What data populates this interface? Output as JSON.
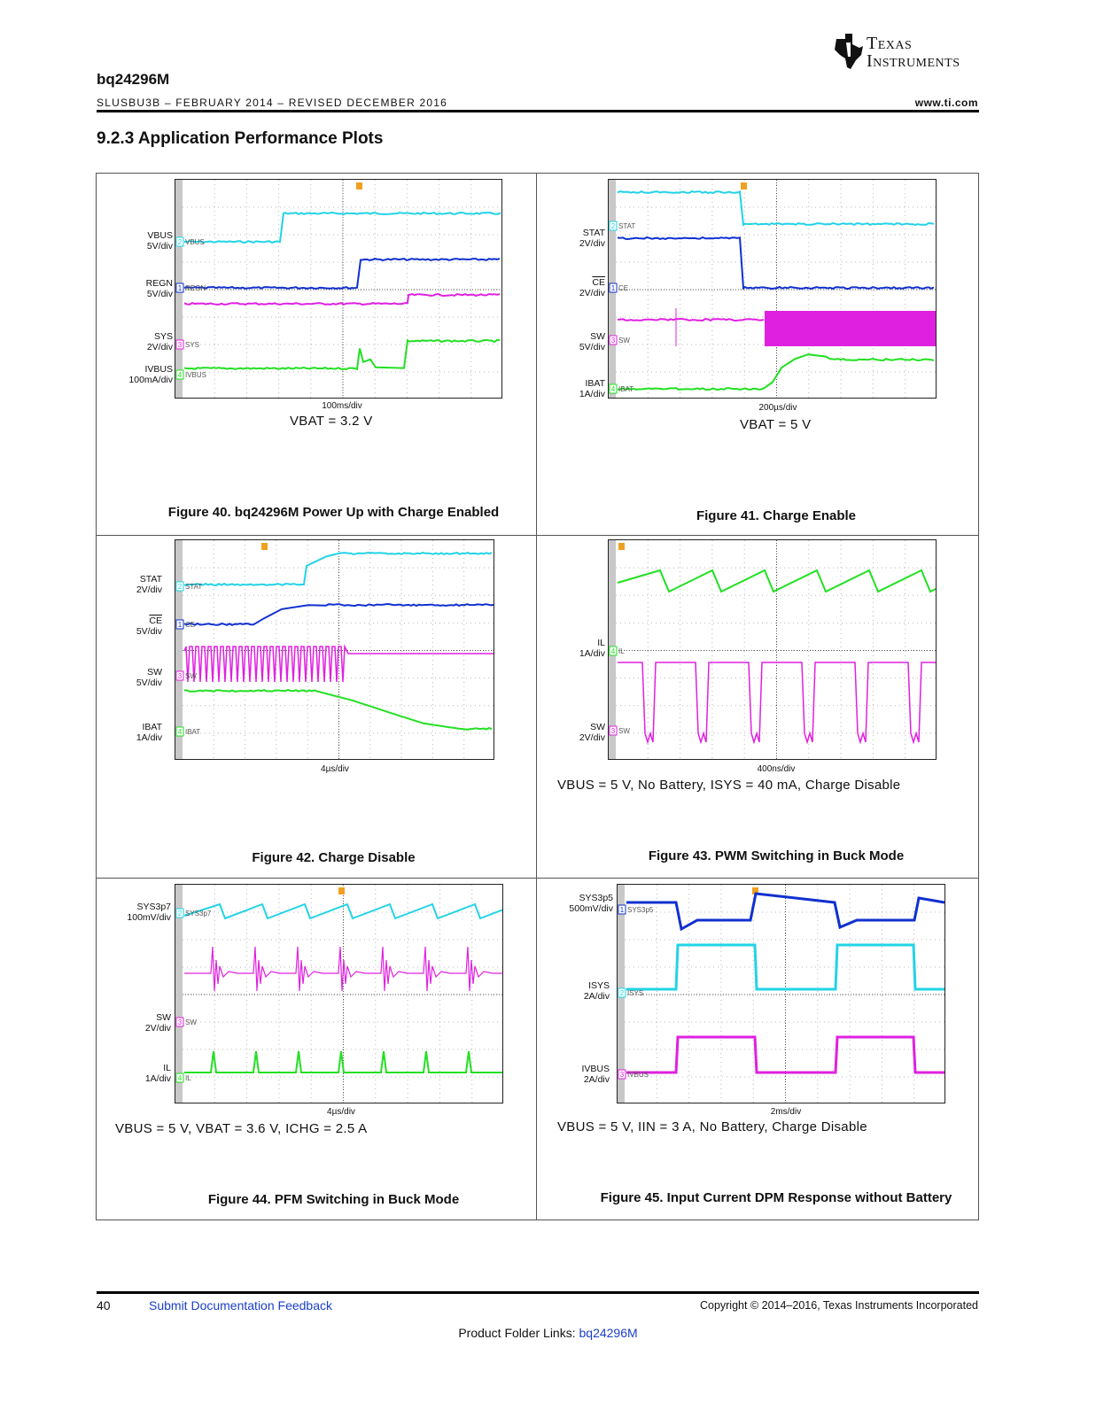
{
  "header": {
    "doc_title": "bq24296M",
    "doc_subtitle": "SLUSBU3B – FEBRUARY 2014 – REVISED DECEMBER 2016",
    "website": "www.ti.com",
    "logo_line1": "Texas",
    "logo_line2": "Instruments"
  },
  "section": {
    "title": "9.2.3   Application Performance Plots"
  },
  "figures": [
    {
      "caption": "Figure 40. bq24296M Power Up with Charge Enabled",
      "condition": "VBAT = 3.2 V",
      "time_div": "100ms/div",
      "channels": [
        {
          "name": "VBUS",
          "scale": "5V/div",
          "num": "2",
          "tag": "VBUS"
        },
        {
          "name": "REGN",
          "scale": "5V/div",
          "num": "1",
          "tag": "REGN"
        },
        {
          "name": "SYS",
          "scale": "2V/div",
          "num": "3",
          "tag": "SYS"
        },
        {
          "name": "IVBUS",
          "scale": "100mA/div",
          "num": "4",
          "tag": "IVBUS"
        }
      ]
    },
    {
      "caption": "Figure 41. Charge Enable",
      "condition": "VBAT = 5 V",
      "time_div": "200µs/div",
      "channels": [
        {
          "name": "STAT",
          "scale": "2V/div",
          "num": "2",
          "tag": "STAT"
        },
        {
          "name": "CE",
          "scale": "2V/div",
          "num": "1",
          "tag": "CE"
        },
        {
          "name": "SW",
          "scale": "5V/div",
          "num": "3",
          "tag": "SW"
        },
        {
          "name": "IBAT",
          "scale": "1A/div",
          "num": "4",
          "tag": "IBAT"
        }
      ]
    },
    {
      "caption": "Figure 42. Charge Disable",
      "condition": "",
      "time_div": "4µs/div",
      "channels": [
        {
          "name": "STAT",
          "scale": "2V/div",
          "num": "2",
          "tag": "STAT"
        },
        {
          "name": "CE",
          "scale": "5V/div",
          "num": "1",
          "tag": "CE"
        },
        {
          "name": "SW",
          "scale": "5V/div",
          "num": "3",
          "tag": "SW"
        },
        {
          "name": "IBAT",
          "scale": "1A/div",
          "num": "4",
          "tag": "IBAT"
        }
      ]
    },
    {
      "caption": "Figure 43. PWM Switching in Buck Mode",
      "condition": "VBUS = 5 V, No Battery, ISYS = 40 mA, Charge Disable",
      "time_div": "400ns/div",
      "channels": [
        {
          "name": "IL",
          "scale": "1A/div",
          "num": "4",
          "tag": "IL"
        },
        {
          "name": "SW",
          "scale": "2V/div",
          "num": "3",
          "tag": "SW"
        }
      ]
    },
    {
      "caption": "Figure 44. PFM Switching in Buck Mode",
      "condition": "VBUS = 5 V, VBAT = 3.6 V, ICHG = 2.5 A",
      "time_div": "4µs/div",
      "channels": [
        {
          "name": "SYS3p7",
          "scale": "100mV/div",
          "num": "2",
          "tag": "SYS3p7"
        },
        {
          "name": "SW",
          "scale": "2V/div",
          "num": "3",
          "tag": "SW"
        },
        {
          "name": "IL",
          "scale": "1A/div",
          "num": "4",
          "tag": "IL"
        }
      ]
    },
    {
      "caption": "Figure 45. Input Current DPM Response without Battery",
      "condition": "VBUS = 5 V, IIN = 3 A, No Battery, Charge Disable",
      "time_div": "2ms/div",
      "channels": [
        {
          "name": "SYS3p5",
          "scale": "500mV/div",
          "num": "1",
          "tag": "SYS3p5"
        },
        {
          "name": "ISYS",
          "scale": "2A/div",
          "num": "2",
          "tag": "ISYS"
        },
        {
          "name": "IVBUS",
          "scale": "2A/div",
          "num": "3",
          "tag": "IVBUS"
        }
      ]
    }
  ],
  "footer": {
    "page_number": "40",
    "feedback_link": "Submit Documentation Feedback",
    "copyright": "Copyright © 2014–2016, Texas Instruments Incorporated",
    "folder_label": "Product Folder Links: ",
    "folder_link": "bq24296M"
  },
  "colors": {
    "cyan": "#22d3e6",
    "blue": "#1030d0",
    "magenta": "#e020e0",
    "green": "#22e022",
    "link": "#1a3ec9"
  }
}
